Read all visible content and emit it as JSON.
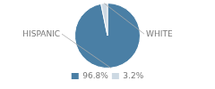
{
  "chart_data": {
    "type": "pie",
    "categories": [
      "HISPANIC",
      "WHITE"
    ],
    "values": [
      96.8,
      3.2
    ],
    "value_labels": [
      "96.8%",
      "3.2%"
    ],
    "colors": [
      "#4a7fa5",
      "#cdd9e3"
    ],
    "legend": "bottom"
  }
}
